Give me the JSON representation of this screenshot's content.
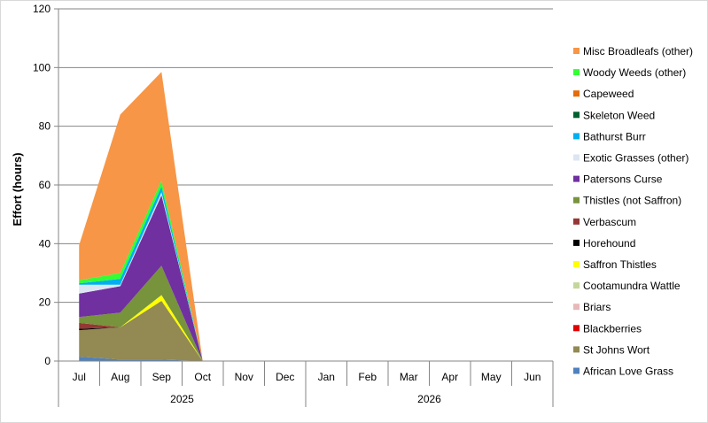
{
  "chart_data": {
    "type": "area",
    "stacked": true,
    "title": "",
    "xlabel": "",
    "ylabel": "Effort (hours)",
    "ylim": [
      0,
      120
    ],
    "yticks": [
      0,
      20,
      40,
      60,
      80,
      100,
      120
    ],
    "grid": "horizontal",
    "legend_position": "right",
    "categories": [
      "Jul",
      "Aug",
      "Sep",
      "Oct",
      "Nov",
      "Dec",
      "Jan",
      "Feb",
      "Mar",
      "Apr",
      "May",
      "Jun"
    ],
    "year_groups": [
      {
        "label": "2025",
        "start": 0,
        "end": 5
      },
      {
        "label": "2026",
        "start": 6,
        "end": 11
      }
    ],
    "series": [
      {
        "name": "African Love Grass",
        "color": "#4f81bd",
        "values": [
          1.5,
          0.5,
          0.5,
          0,
          null,
          null,
          null,
          null,
          null,
          null,
          null,
          null
        ]
      },
      {
        "name": "St Johns Wort",
        "color": "#938953",
        "values": [
          9,
          11,
          20,
          0,
          null,
          null,
          null,
          null,
          null,
          null,
          null,
          null
        ]
      },
      {
        "name": "Blackberries",
        "color": "#e00000",
        "values": [
          0,
          0,
          0,
          0,
          null,
          null,
          null,
          null,
          null,
          null,
          null,
          null
        ]
      },
      {
        "name": "Briars",
        "color": "#e6b9b8",
        "values": [
          0,
          0,
          0,
          0,
          null,
          null,
          null,
          null,
          null,
          null,
          null,
          null
        ]
      },
      {
        "name": "Cootamundra Wattle",
        "color": "#c4d79b",
        "values": [
          0,
          0,
          0,
          0,
          null,
          null,
          null,
          null,
          null,
          null,
          null,
          null
        ]
      },
      {
        "name": "Saffron Thistles",
        "color": "#ffff00",
        "values": [
          0,
          0,
          2,
          0,
          null,
          null,
          null,
          null,
          null,
          null,
          null,
          null
        ]
      },
      {
        "name": "Horehound",
        "color": "#000000",
        "values": [
          0.5,
          0,
          0,
          0,
          null,
          null,
          null,
          null,
          null,
          null,
          null,
          null
        ]
      },
      {
        "name": "Verbascum",
        "color": "#953735",
        "values": [
          2,
          0,
          0,
          0,
          null,
          null,
          null,
          null,
          null,
          null,
          null,
          null
        ]
      },
      {
        "name": "Thistles (not Saffron)",
        "color": "#77933c",
        "values": [
          2,
          5,
          10,
          0,
          null,
          null,
          null,
          null,
          null,
          null,
          null,
          null
        ]
      },
      {
        "name": "Patersons Curse",
        "color": "#7030a0",
        "values": [
          8,
          9,
          24,
          0,
          null,
          null,
          null,
          null,
          null,
          null,
          null,
          null
        ]
      },
      {
        "name": "Exotic Grasses (other)",
        "color": "#dce6f2",
        "values": [
          3,
          0.5,
          1,
          0,
          null,
          null,
          null,
          null,
          null,
          null,
          null,
          null
        ]
      },
      {
        "name": "Bathurst Burr",
        "color": "#00b0f0",
        "values": [
          0.5,
          2,
          2,
          0,
          null,
          null,
          null,
          null,
          null,
          null,
          null,
          null
        ]
      },
      {
        "name": "Skeleton Weed",
        "color": "#00612e",
        "values": [
          0,
          0,
          0,
          0,
          null,
          null,
          null,
          null,
          null,
          null,
          null,
          null
        ]
      },
      {
        "name": "Capeweed",
        "color": "#e46c0a",
        "values": [
          0,
          0,
          0,
          0,
          null,
          null,
          null,
          null,
          null,
          null,
          null,
          null
        ]
      },
      {
        "name": "Woody Weeds (other)",
        "color": "#33ff33",
        "values": [
          1,
          2,
          2,
          0,
          null,
          null,
          null,
          null,
          null,
          null,
          null,
          null
        ]
      },
      {
        "name": "Misc Broadleafs (other)",
        "color": "#f79646",
        "values": [
          12,
          54,
          37,
          0,
          null,
          null,
          null,
          null,
          null,
          null,
          null,
          null
        ]
      }
    ]
  }
}
